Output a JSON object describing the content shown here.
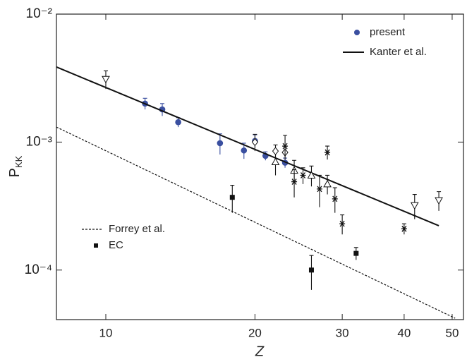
{
  "chart_data": {
    "type": "scatter",
    "log_x": true,
    "log_y": true,
    "xlabel": "Z",
    "ylabel": {
      "text": "P",
      "subscript": "KK"
    },
    "xlim": [
      7.95,
      52.7
    ],
    "ylim": [
      4.1e-05,
      0.01
    ],
    "xticks": [
      10,
      20,
      30,
      40,
      50
    ],
    "yticks": [
      {
        "value": 0.01,
        "label": "10⁻²"
      },
      {
        "value": 0.001,
        "label": "10⁻³"
      },
      {
        "value": 0.0001,
        "label": "10⁻⁴"
      }
    ],
    "series": [
      {
        "name": "present",
        "kind": "points",
        "marker": "circle",
        "color": "#3a4fa0",
        "x": [
          12,
          13,
          14,
          17,
          19,
          20,
          21,
          23
        ],
        "values": [
          0.002,
          0.0018,
          0.00143,
          0.00098,
          0.00086,
          0.00102,
          0.00078,
          0.00069
        ],
        "errors": [
          0.0002,
          0.0002,
          0.00012,
          0.00018,
          0.00012,
          0.00012,
          6e-05,
          6e-05
        ]
      },
      {
        "name": "Kanter et al.",
        "kind": "line",
        "style": "solid",
        "color": "#111111",
        "x": [
          7.95,
          47
        ],
        "values": [
          0.00386,
          0.000222
        ]
      },
      {
        "name": "Forrey et al.",
        "kind": "line",
        "style": "dashed",
        "color": "#111111",
        "x": [
          7.95,
          50.7
        ],
        "values": [
          0.00131,
          4.2e-05
        ]
      },
      {
        "name": "EC",
        "kind": "points",
        "marker": "square",
        "color": "#111111",
        "x": [
          18,
          26,
          32
        ],
        "values": [
          0.00037,
          0.0001,
          0.000135
        ],
        "errors": [
          9e-05,
          3e-05,
          1.5e-05
        ]
      },
      {
        "kind": "points",
        "marker": "triangle-down",
        "color": "#111111",
        "x": [
          10,
          42,
          47
        ],
        "values": [
          0.0031,
          0.00032,
          0.00035
        ],
        "errors": [
          0.0005,
          7e-05,
          6e-05
        ]
      },
      {
        "kind": "points",
        "marker": "triangle-up",
        "color": "#111111",
        "x": [
          22,
          24,
          26,
          28
        ],
        "values": [
          0.0007,
          0.0006,
          0.00055,
          0.00047
        ],
        "errors": [
          0.00015,
          0.00012,
          0.0001,
          8e-05
        ]
      },
      {
        "kind": "points",
        "marker": "diamond",
        "color": "#111111",
        "x": [
          20,
          22,
          23
        ],
        "values": [
          0.001,
          0.00085,
          0.00083
        ],
        "errors": [
          0.00015,
          0.0001,
          0.0001
        ]
      },
      {
        "kind": "points",
        "marker": "asterisk",
        "color": "#111111",
        "x": [
          23,
          24,
          25,
          27,
          28,
          29,
          30,
          40
        ],
        "values": [
          0.00093,
          0.00049,
          0.00055,
          0.00043,
          0.00083,
          0.00036,
          0.00023,
          0.00021
        ],
        "errors": [
          0.0002,
          0.00012,
          8e-05,
          0.00012,
          0.0001,
          8e-05,
          4e-05,
          2e-05
        ]
      }
    ]
  }
}
